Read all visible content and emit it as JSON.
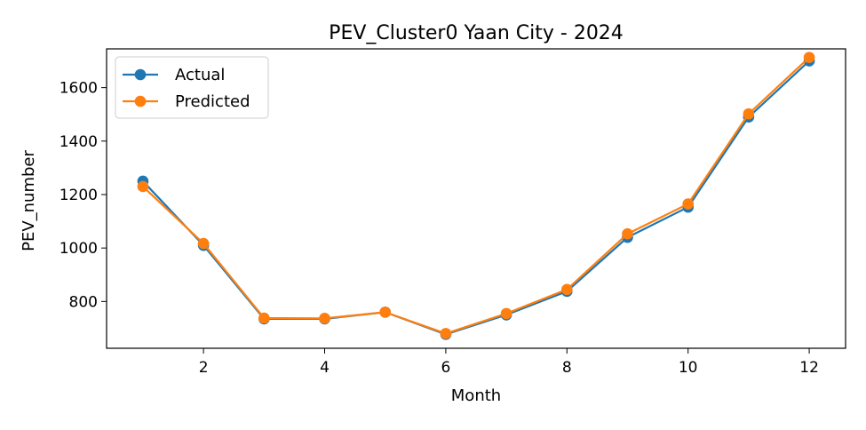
{
  "chart_data": {
    "type": "line",
    "title": "PEV_Cluster0 Yaan City - 2024",
    "xlabel": "Month",
    "ylabel": "PEV_number",
    "xlim": [
      0.4,
      12.6
    ],
    "ylim": [
      625,
      1745
    ],
    "x_ticks": [
      2,
      4,
      6,
      8,
      10,
      12
    ],
    "y_ticks": [
      800,
      1000,
      1200,
      1400,
      1600
    ],
    "legend_position": "top-left",
    "grid": false,
    "x": [
      1,
      2,
      3,
      4,
      5,
      6,
      7,
      8,
      9,
      10,
      11,
      12
    ],
    "series": [
      {
        "name": "Actual",
        "color": "#1f77b4",
        "marker": "circle",
        "values": [
          1250,
          1010,
          735,
          735,
          760,
          677,
          750,
          838,
          1040,
          1153,
          1490,
          1700
        ]
      },
      {
        "name": "Predicted",
        "color": "#ff7f0e",
        "marker": "circle",
        "values": [
          1230,
          1017,
          738,
          737,
          760,
          680,
          755,
          845,
          1053,
          1165,
          1502,
          1713
        ]
      }
    ]
  }
}
